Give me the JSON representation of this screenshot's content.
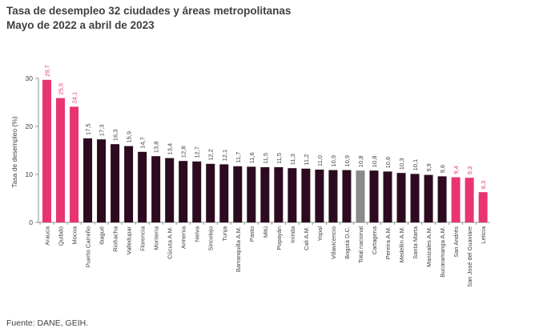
{
  "header": {
    "title": "Tasa de desempleo 32 ciudades y áreas metropolitanas",
    "subtitle": "Mayo de 2022 a abril de 2023"
  },
  "footer": {
    "source": "Fuente: DANE, GEIH."
  },
  "colors": {
    "highlight": "#e8356f",
    "default": "#2c0a1f",
    "national": "#8a8a8a"
  },
  "chart_data": {
    "type": "bar",
    "title": "Tasa de desempleo 32 ciudades y áreas metropolitanas",
    "subtitle": "Mayo de 2022 a abril de 2023",
    "xlabel": "",
    "ylabel": "Tasa de desempleo (%)",
    "ylim": [
      0,
      30
    ],
    "yticks": [
      0,
      10,
      20,
      30
    ],
    "grid": false,
    "legend": "none",
    "categories": [
      "Arauca",
      "Quibdó",
      "Mocoa",
      "Puerto Carreño",
      "Ibagué",
      "Riohacha",
      "Valledupar",
      "Florencia",
      "Montería",
      "Cúcuta A.M.",
      "Armenia",
      "Neiva",
      "Sincelejo",
      "Tunja",
      "Barranquilla A.M.",
      "Pasto",
      "Mitú",
      "Popayán",
      "Inírida",
      "Cali A.M.",
      "Yopal",
      "Villavicencio",
      "Bogotá D.C.",
      "Total nacional",
      "Cartagena",
      "Pereira A.M.",
      "Medellín A.M.",
      "Santa Marta",
      "Manizales A.M.",
      "Bucaramanga A.M.",
      "San Andrés",
      "San José del Guaviare",
      "Leticia"
    ],
    "value_labels": [
      "29,7",
      "25,9",
      "24,1",
      "17,5",
      "17,3",
      "16,3",
      "15,9",
      "14,7",
      "13,8",
      "13,4",
      "12,8",
      "12,7",
      "12,2",
      "12,1",
      "11,7",
      "11,6",
      "11,5",
      "11,5",
      "11,3",
      "11,2",
      "11,0",
      "10,9",
      "10,9",
      "10,8",
      "10,8",
      "10,6",
      "10,3",
      "10,1",
      "9,9",
      "9,6",
      "9,4",
      "9,3",
      "6,3"
    ],
    "values": [
      29.7,
      25.9,
      24.1,
      17.5,
      17.3,
      16.3,
      15.9,
      14.7,
      13.8,
      13.4,
      12.8,
      12.7,
      12.2,
      12.1,
      11.7,
      11.6,
      11.5,
      11.5,
      11.3,
      11.2,
      11.0,
      10.9,
      10.9,
      10.8,
      10.8,
      10.6,
      10.3,
      10.1,
      9.9,
      9.6,
      9.4,
      9.3,
      6.3
    ],
    "bar_colors": [
      "highlight",
      "highlight",
      "highlight",
      "default",
      "default",
      "default",
      "default",
      "default",
      "default",
      "default",
      "default",
      "default",
      "default",
      "default",
      "default",
      "default",
      "default",
      "default",
      "default",
      "default",
      "default",
      "default",
      "default",
      "national",
      "default",
      "default",
      "default",
      "default",
      "default",
      "default",
      "highlight",
      "highlight",
      "highlight"
    ]
  }
}
